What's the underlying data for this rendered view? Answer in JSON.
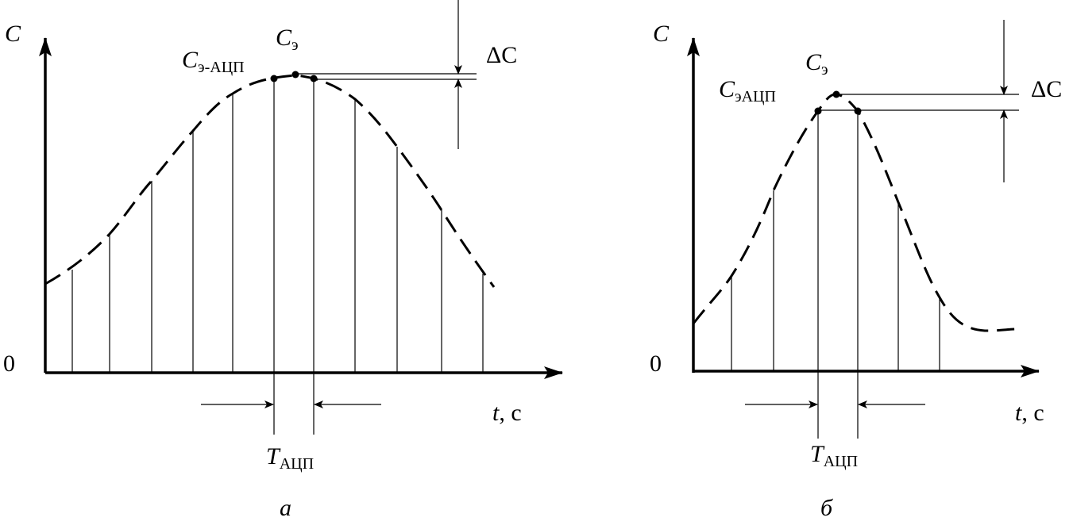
{
  "panel_a": {
    "y_axis_label": "C",
    "origin_label": "0",
    "x_axis_label_var": "t",
    "x_axis_label_unit": ", с",
    "peak_label": "C",
    "peak_label_sub": "э",
    "adc_peak_label": "C",
    "adc_peak_label_sub": "э-АЦП",
    "delta_label": "ΔC",
    "period_label": "T",
    "period_label_sub": "АЦП",
    "caption": "а"
  },
  "panel_b": {
    "y_axis_label": "C",
    "origin_label": "0",
    "x_axis_label_var": "t",
    "x_axis_label_unit": ", с",
    "peak_label": "C",
    "peak_label_sub": "э",
    "adc_peak_label": "C",
    "adc_peak_label_sub": "эАЦП",
    "delta_label": "ΔC",
    "period_label": "T",
    "period_label_sub": "АЦП",
    "caption": "б"
  }
}
